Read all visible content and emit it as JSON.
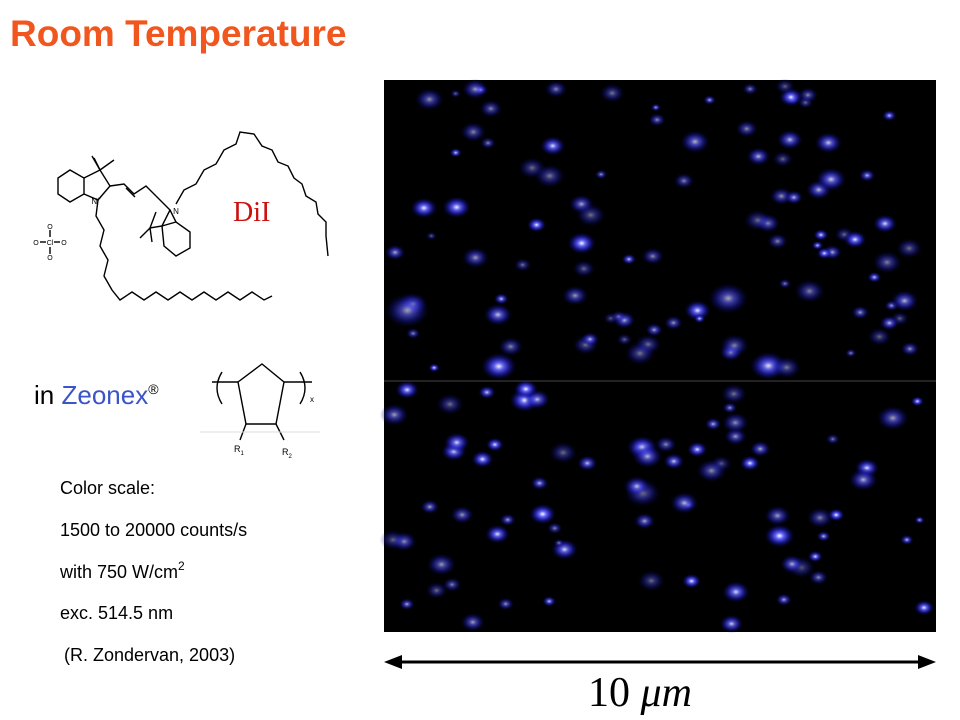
{
  "title": "Room Temperature",
  "molecule": {
    "name": "DiI",
    "n_plus": "N",
    "plus": "+",
    "n": "N",
    "cl": "Cl",
    "o": "O"
  },
  "matrix": {
    "prefix": "in",
    "name": "Zeonex",
    "mark": "®",
    "r1": {
      "text": "R",
      "sub": "1"
    },
    "r2": {
      "text": "R",
      "sub": "2"
    },
    "repeat": "x"
  },
  "notes": {
    "line1": "Color scale:",
    "line2": "1500 to 20000 counts/s",
    "line3": {
      "text": "with 750 W/cm",
      "sup": "2"
    },
    "line4": "exc. 514.5 nm",
    "line5": "(R. Zondervan, 2003)"
  },
  "scale_bar": {
    "value": "10",
    "unit": "μm"
  }
}
